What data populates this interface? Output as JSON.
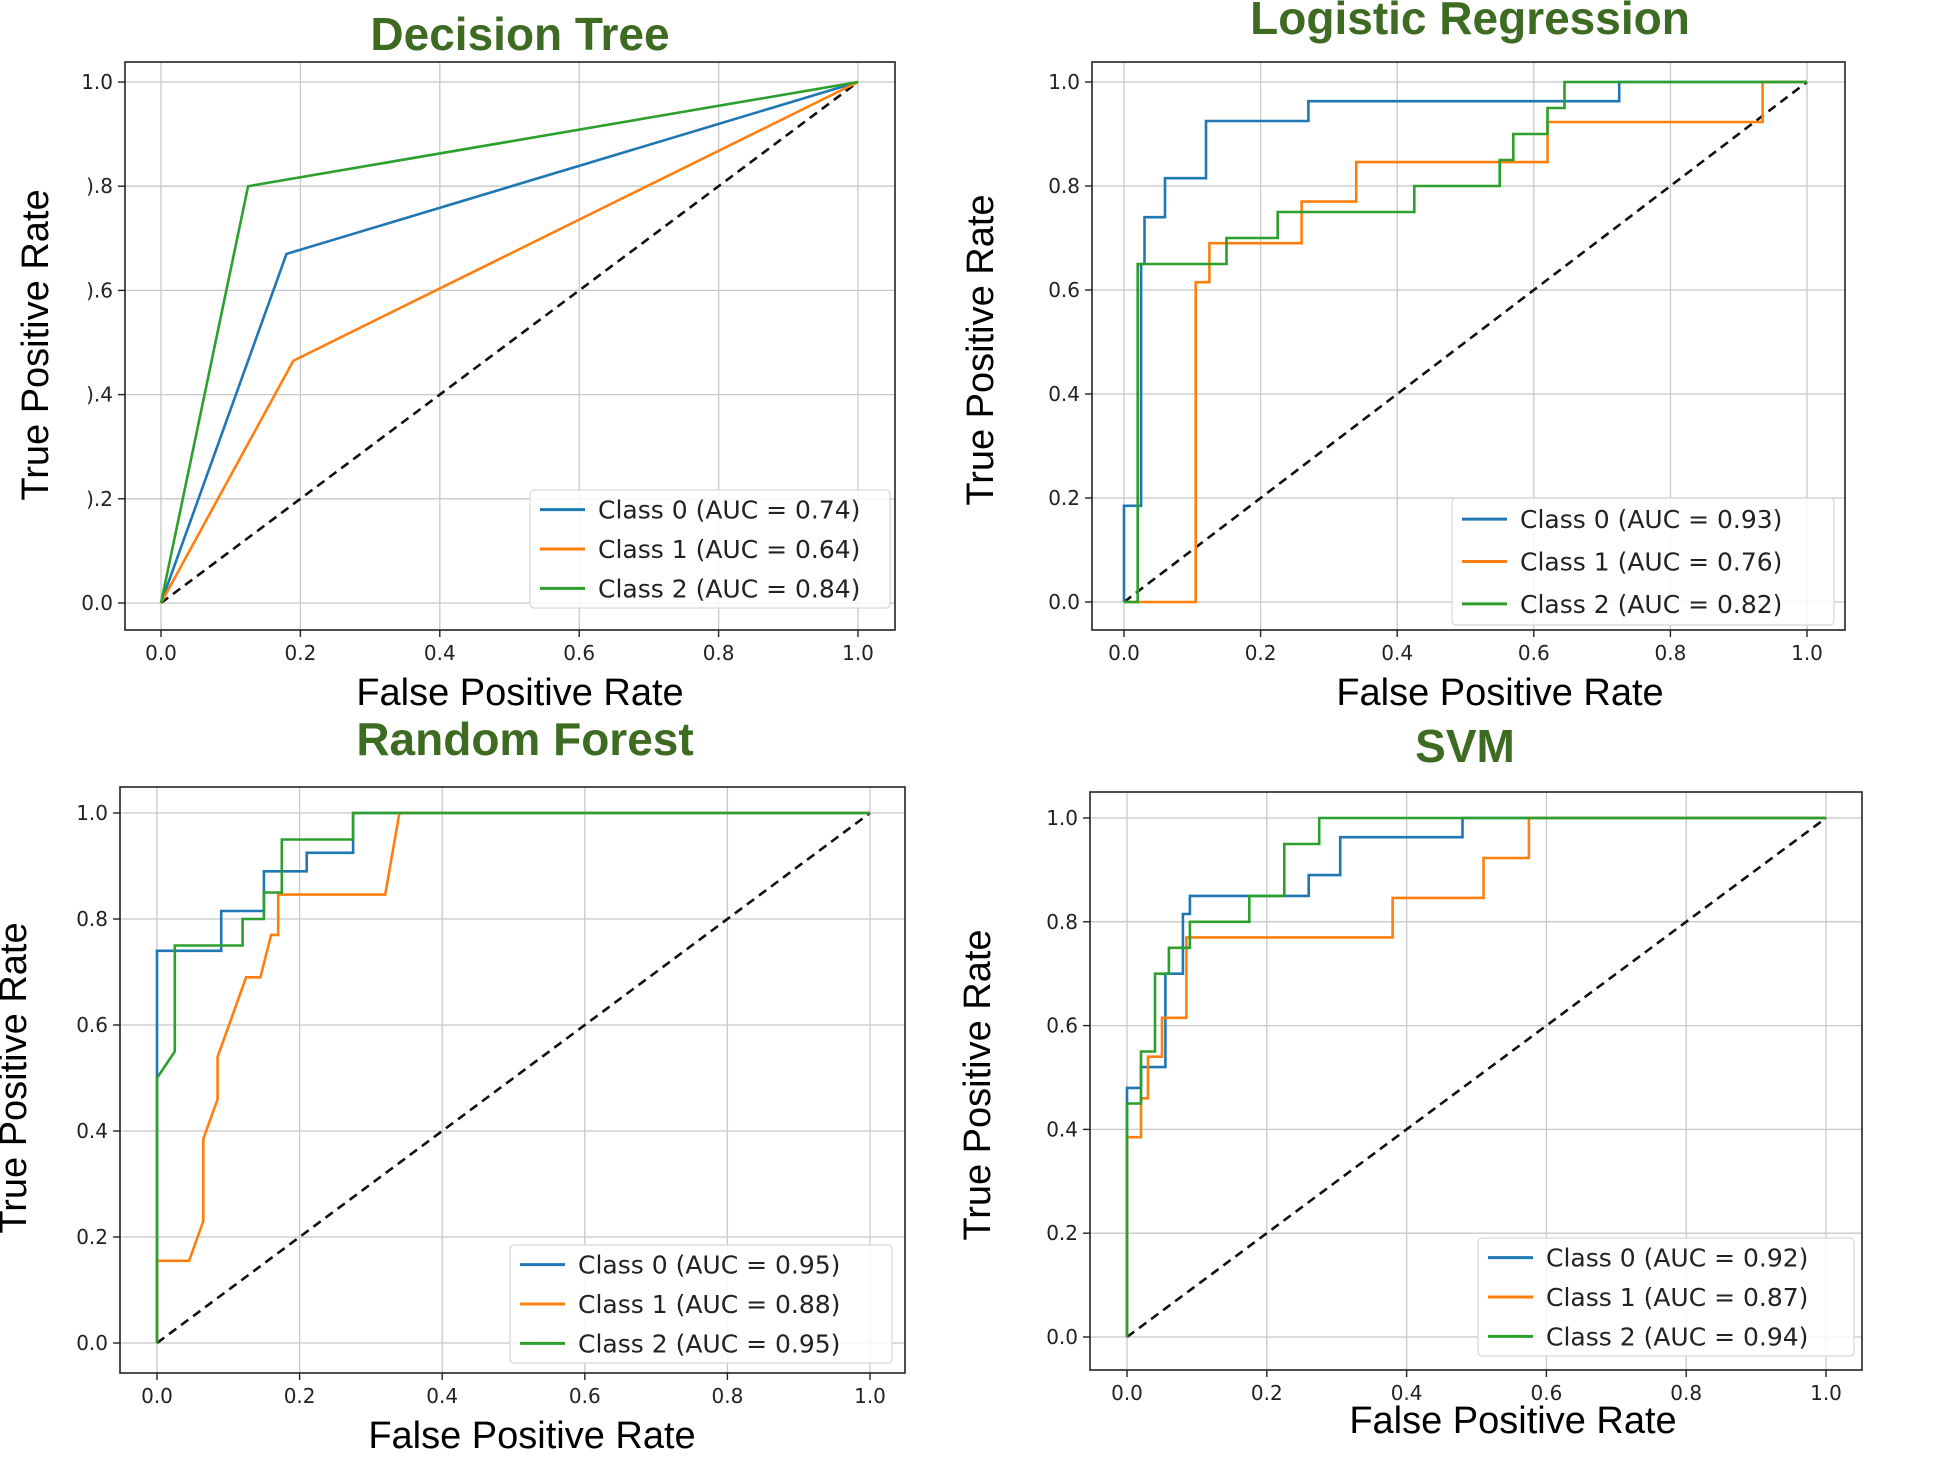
{
  "colors": {
    "class0": "#1f77b4",
    "class1": "#ff7f0e",
    "class2": "#2ca02c",
    "title": "#3d6b22"
  },
  "chart_data": [
    {
      "type": "line",
      "title": "Decision Tree",
      "xlabel": "False Positive Rate",
      "ylabel": "True Positive Rate",
      "xlim": [
        0,
        1
      ],
      "ylim": [
        0,
        1
      ],
      "xticks": [
        "0.0",
        "0.2",
        "0.4",
        "0.6",
        "0.8",
        "1.0"
      ],
      "yticks": [
        "0.0",
        ").2",
        ").4",
        ").6",
        ").8",
        "1.0"
      ],
      "grid": true,
      "legend_position": "lower-right",
      "series": [
        {
          "name": "Class 0 (AUC = 0.74)",
          "x": [
            0,
            0.18,
            1
          ],
          "y": [
            0,
            0.67,
            1
          ]
        },
        {
          "name": "Class 1 (AUC = 0.64)",
          "x": [
            0,
            0.19,
            1
          ],
          "y": [
            0,
            0.465,
            1
          ]
        },
        {
          "name": "Class 2 (AUC = 0.84)",
          "x": [
            0,
            0.125,
            1
          ],
          "y": [
            0,
            0.8,
            1
          ]
        }
      ]
    },
    {
      "type": "line",
      "title": "Logistic Regression",
      "xlabel": "False Positive Rate",
      "ylabel": "True Positive Rate",
      "xlim": [
        0,
        1
      ],
      "ylim": [
        0,
        1
      ],
      "xticks": [
        "0.0",
        "0.2",
        "0.4",
        "0.6",
        "0.8",
        "1.0"
      ],
      "yticks": [
        "0.0",
        "0.2",
        "0.4",
        "0.6",
        "0.8",
        "1.0"
      ],
      "grid": true,
      "legend_position": "lower-right",
      "series": [
        {
          "name": "Class 0 (AUC = 0.93)",
          "x": [
            0,
            0,
            0.025,
            0.025,
            0.03,
            0.03,
            0.06,
            0.06,
            0.12,
            0.12,
            0.27,
            0.27,
            0.725,
            0.725,
            1
          ],
          "y": [
            0,
            0.185,
            0.185,
            0.65,
            0.65,
            0.74,
            0.74,
            0.815,
            0.815,
            0.925,
            0.925,
            0.963,
            0.963,
            1,
            1
          ]
        },
        {
          "name": "Class 1 (AUC = 0.76)",
          "x": [
            0,
            0.105,
            0.105,
            0.125,
            0.125,
            0.14,
            0.14,
            0.26,
            0.26,
            0.34,
            0.34,
            0.62,
            0.62,
            0.935,
            0.935,
            1
          ],
          "y": [
            0,
            0,
            0.615,
            0.615,
            0.69,
            0.69,
            0.69,
            0.69,
            0.77,
            0.77,
            0.846,
            0.846,
            0.923,
            0.923,
            1,
            1
          ]
        },
        {
          "name": "Class 2 (AUC = 0.82)",
          "x": [
            0,
            0.02,
            0.02,
            0.15,
            0.15,
            0.225,
            0.225,
            0.425,
            0.425,
            0.55,
            0.55,
            0.57,
            0.57,
            0.62,
            0.62,
            0.645,
            0.645,
            1
          ],
          "y": [
            0,
            0,
            0.65,
            0.65,
            0.7,
            0.7,
            0.75,
            0.75,
            0.8,
            0.8,
            0.85,
            0.85,
            0.9,
            0.9,
            0.95,
            0.95,
            1,
            1
          ]
        }
      ]
    },
    {
      "type": "line",
      "title": "Random Forest",
      "xlabel": "False Positive Rate",
      "ylabel": "True Positive Rate",
      "xlim": [
        0,
        1
      ],
      "ylim": [
        0,
        1
      ],
      "xticks": [
        "0.0",
        "0.2",
        "0.4",
        "0.6",
        "0.8",
        "1.0"
      ],
      "yticks": [
        "0.0",
        "0.2",
        "0.4",
        "0.6",
        "0.8",
        "1.0"
      ],
      "grid": true,
      "legend_position": "lower-right",
      "series": [
        {
          "name": "Class 0 (AUC = 0.95)",
          "x": [
            0,
            0,
            0.09,
            0.09,
            0.15,
            0.15,
            0.21,
            0.21,
            0.275,
            0.275,
            1
          ],
          "y": [
            0,
            0.74,
            0.74,
            0.815,
            0.815,
            0.89,
            0.89,
            0.925,
            0.925,
            1,
            1
          ]
        },
        {
          "name": "Class 1 (AUC = 0.88)",
          "x": [
            0,
            0,
            0.045,
            0.065,
            0.065,
            0.085,
            0.085,
            0.105,
            0.125,
            0.135,
            0.135,
            0.145,
            0.16,
            0.17,
            0.17,
            0.18,
            0.32,
            0.34,
            0.34,
            1
          ],
          "y": [
            0,
            0.155,
            0.155,
            0.23,
            0.385,
            0.46,
            0.54,
            0.615,
            0.69,
            0.69,
            0.69,
            0.69,
            0.77,
            0.77,
            0.846,
            0.846,
            0.846,
            1,
            1,
            1
          ]
        },
        {
          "name": "Class 2 (AUC = 0.95)",
          "x": [
            0,
            0,
            0.025,
            0.025,
            0.12,
            0.12,
            0.15,
            0.15,
            0.175,
            0.175,
            0.275,
            0.275,
            1
          ],
          "y": [
            0,
            0.5,
            0.55,
            0.75,
            0.75,
            0.8,
            0.8,
            0.85,
            0.85,
            0.95,
            0.95,
            1,
            1
          ]
        }
      ]
    },
    {
      "type": "line",
      "title": "SVM",
      "xlabel": "False Positive Rate",
      "ylabel": "True Positive Rate",
      "xlim": [
        0,
        1
      ],
      "ylim": [
        0,
        1
      ],
      "xticks": [
        "0.0",
        "0.2",
        "0.4",
        "0.6",
        "0.8",
        "1.0"
      ],
      "yticks": [
        "0.0",
        "0.2",
        "0.4",
        "0.6",
        "0.8",
        "1.0"
      ],
      "grid": true,
      "legend_position": "lower-right",
      "series": [
        {
          "name": "Class 0 (AUC = 0.92)",
          "x": [
            0,
            0,
            0.02,
            0.02,
            0.035,
            0.035,
            0.055,
            0.055,
            0.08,
            0.08,
            0.09,
            0.09,
            0.24,
            0.24,
            0.26,
            0.26,
            0.305,
            0.305,
            0.48,
            0.48,
            1
          ],
          "y": [
            0,
            0.48,
            0.48,
            0.52,
            0.52,
            0.52,
            0.52,
            0.7,
            0.7,
            0.815,
            0.815,
            0.85,
            0.85,
            0.85,
            0.85,
            0.89,
            0.89,
            0.963,
            0.963,
            1,
            1
          ]
        },
        {
          "name": "Class 1 (AUC = 0.87)",
          "x": [
            0,
            0,
            0.02,
            0.02,
            0.03,
            0.03,
            0.05,
            0.05,
            0.065,
            0.065,
            0.085,
            0.085,
            0.38,
            0.38,
            0.51,
            0.51,
            0.575,
            0.575,
            1
          ],
          "y": [
            0,
            0.385,
            0.385,
            0.46,
            0.46,
            0.54,
            0.54,
            0.615,
            0.615,
            0.615,
            0.615,
            0.77,
            0.77,
            0.846,
            0.846,
            0.923,
            0.923,
            1,
            1
          ]
        },
        {
          "name": "Class 2 (AUC = 0.94)",
          "x": [
            0,
            0,
            0.02,
            0.02,
            0.04,
            0.04,
            0.06,
            0.06,
            0.075,
            0.075,
            0.09,
            0.09,
            0.175,
            0.175,
            0.225,
            0.225,
            0.275,
            0.275,
            1
          ],
          "y": [
            0,
            0.45,
            0.45,
            0.55,
            0.55,
            0.7,
            0.7,
            0.75,
            0.75,
            0.75,
            0.75,
            0.8,
            0.8,
            0.85,
            0.85,
            0.95,
            0.95,
            1,
            1
          ]
        }
      ]
    }
  ]
}
